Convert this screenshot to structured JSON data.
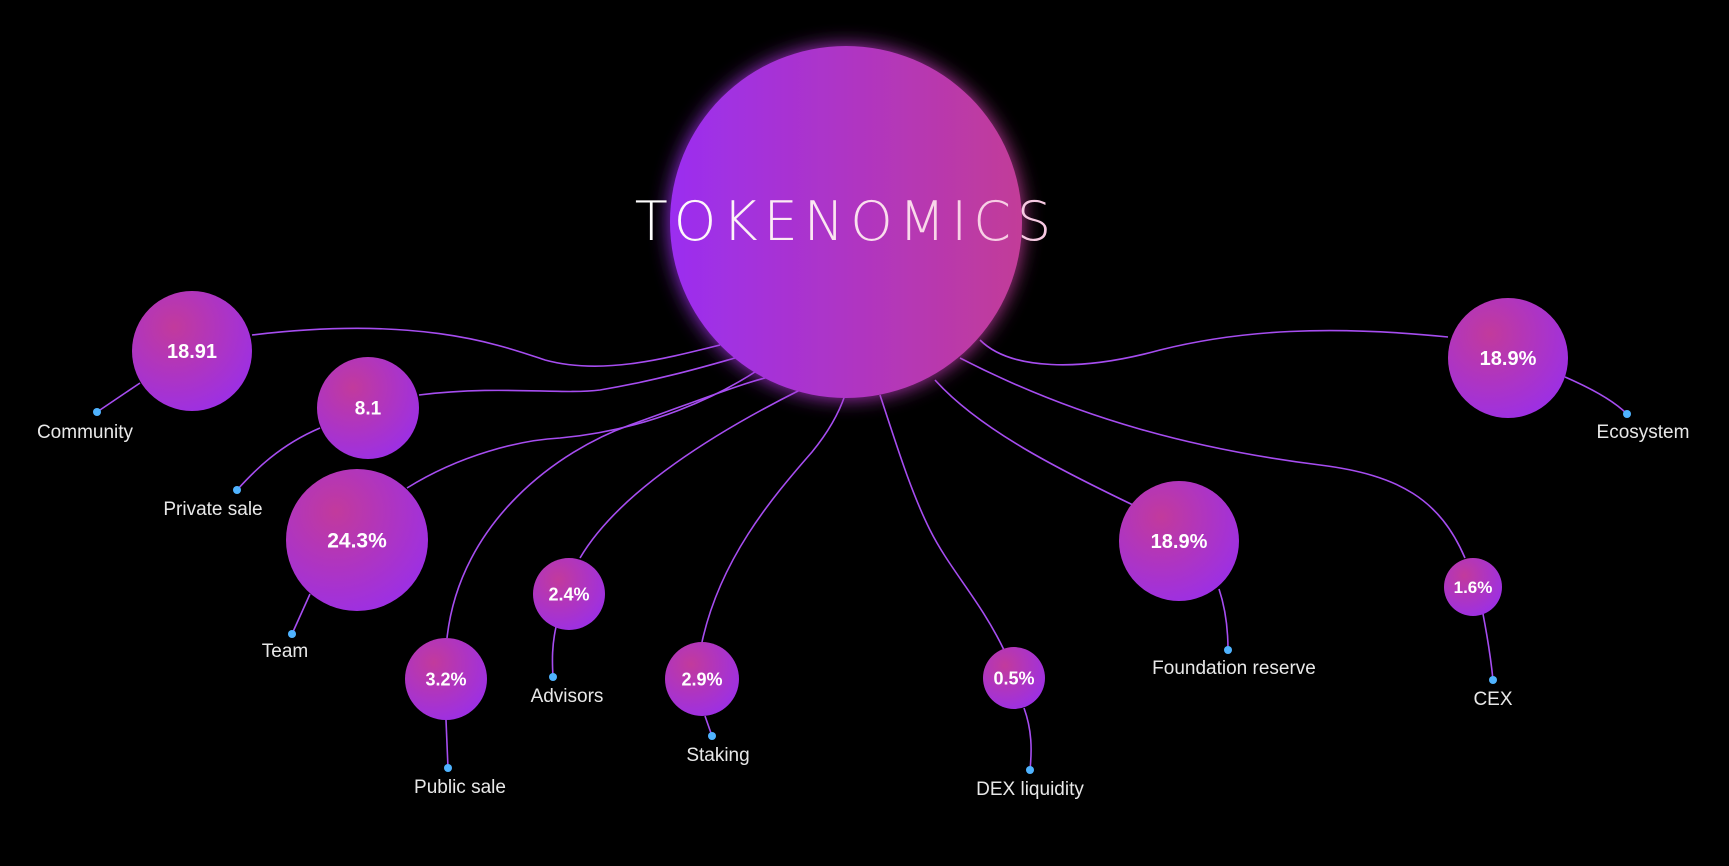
{
  "title": "TOKENOMICS",
  "colors": {
    "background": "#000000",
    "bubble_start": "#9b2ef0",
    "bubble_end": "#c43a9a",
    "connector": "#a64df0",
    "dot": "#4fb3ff"
  },
  "items": [
    {
      "id": "community",
      "label": "Community",
      "value": "18.91"
    },
    {
      "id": "private-sale",
      "label": "Private sale",
      "value": "8.1"
    },
    {
      "id": "team",
      "label": "Team",
      "value": "24.3%"
    },
    {
      "id": "public-sale",
      "label": "Public sale",
      "value": "3.2%"
    },
    {
      "id": "advisors",
      "label": "Advisors",
      "value": "2.4%"
    },
    {
      "id": "staking",
      "label": "Staking",
      "value": "2.9%"
    },
    {
      "id": "dex-liquidity",
      "label": "DEX liquidity",
      "value": "0.5%"
    },
    {
      "id": "foundation-reserve",
      "label": "Foundation reserve",
      "value": "18.9%"
    },
    {
      "id": "cex",
      "label": "CEX",
      "value": "1.6%"
    },
    {
      "id": "ecosystem",
      "label": "Ecosystem",
      "value": "18.9%"
    }
  ]
}
